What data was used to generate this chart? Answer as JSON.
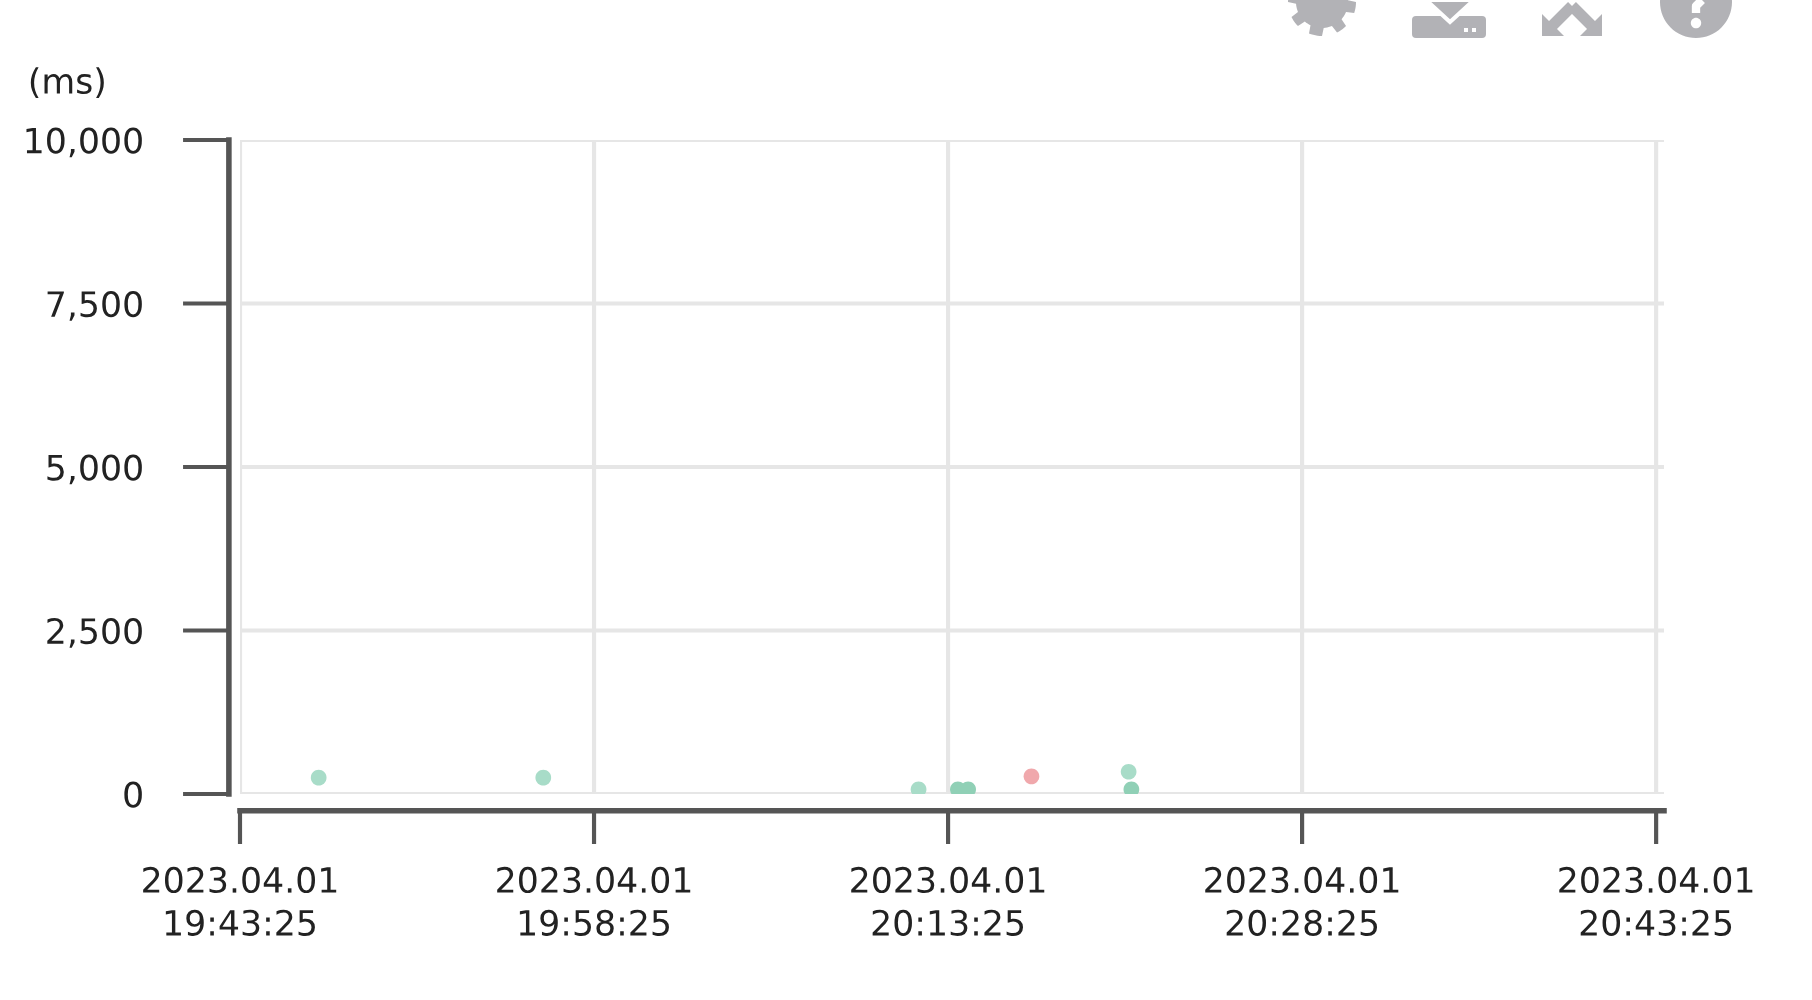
{
  "chart_data": {
    "type": "scatter",
    "ylabel": "(ms)",
    "x": [
      "2023-04-01T19:46:45",
      "2023-04-01T19:56:16",
      "2023-04-01T20:12:10",
      "2023-04-01T20:13:50",
      "2023-04-01T20:14:16",
      "2023-04-01T20:16:57",
      "2023-04-01T20:21:04",
      "2023-04-01T20:21:11"
    ],
    "values": [
      250,
      250,
      70,
      70,
      70,
      270,
      340,
      70
    ],
    "colors": [
      "#a8dcc8",
      "#a8dcc8",
      "#a8dcc8",
      "#90d0b6",
      "#90d0b6",
      "#f0a8ac",
      "#a8dcc8",
      "#90d0b6"
    ],
    "marker": "circle",
    "xlim": [
      "2023-04-01T19:43:25",
      "2023-04-01T20:43:45"
    ],
    "xticks": [
      {
        "value": "2023-04-01T19:43:25",
        "label": "2023.04.01\n19:43:25"
      },
      {
        "value": "2023-04-01T19:58:25",
        "label": "2023.04.01\n19:58:25"
      },
      {
        "value": "2023-04-01T20:13:25",
        "label": "2023.04.01\n20:13:25"
      },
      {
        "value": "2023-04-01T20:28:25",
        "label": "2023.04.01\n20:28:25"
      },
      {
        "value": "2023-04-01T20:43:25",
        "label": "2023.04.01\n20:43:25"
      }
    ],
    "ylim": [
      0,
      10000
    ],
    "yticks": [
      {
        "value": 0,
        "label": "0"
      },
      {
        "value": 2500,
        "label": "2,500"
      },
      {
        "value": 5000,
        "label": "5,000"
      },
      {
        "value": 7500,
        "label": "7,500"
      },
      {
        "value": 10000,
        "label": "10,000"
      }
    ],
    "grid": true
  }
}
